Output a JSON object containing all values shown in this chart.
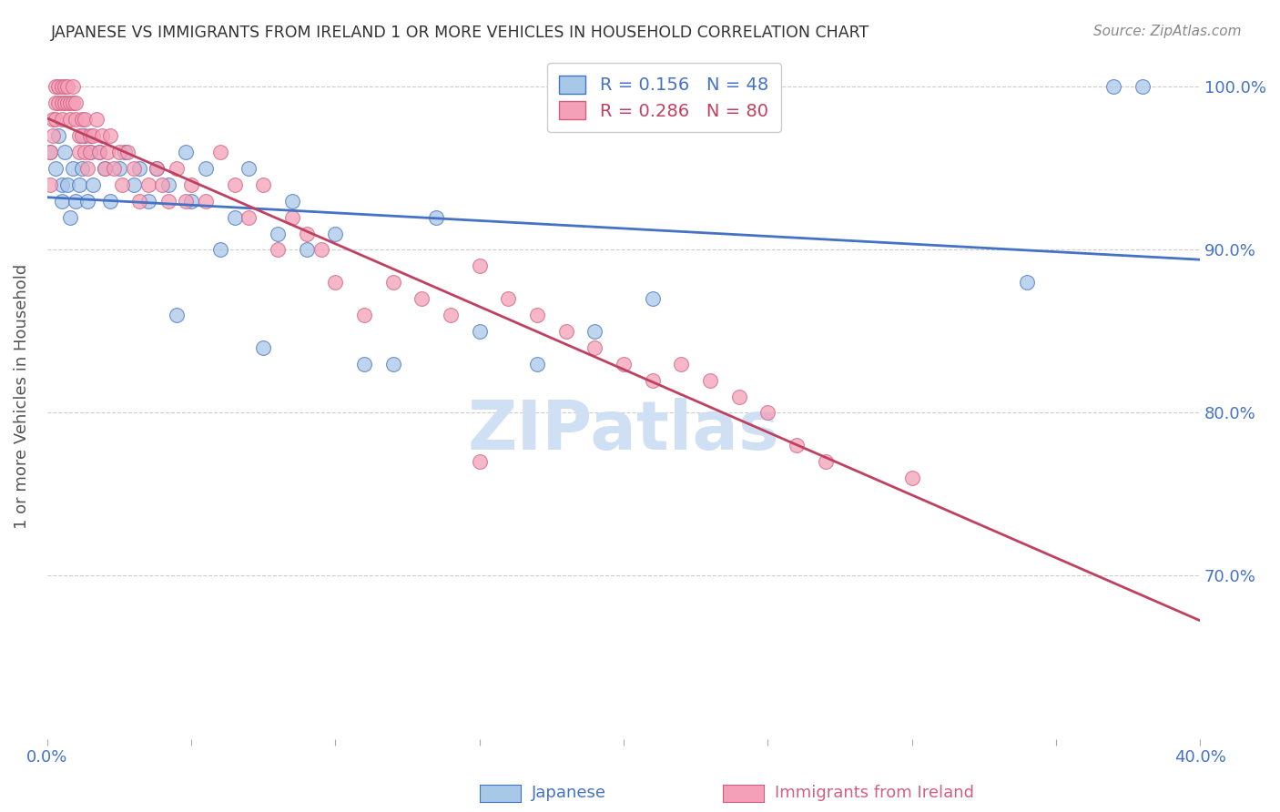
{
  "title": "JAPANESE VS IMMIGRANTS FROM IRELAND 1 OR MORE VEHICLES IN HOUSEHOLD CORRELATION CHART",
  "source": "Source: ZipAtlas.com",
  "ylabel": "1 or more Vehicles in Household",
  "xlabel_japanese": "Japanese",
  "xlabel_ireland": "Immigrants from Ireland",
  "x_min": 0.0,
  "x_max": 0.4,
  "y_min": 0.6,
  "y_max": 1.02,
  "x_tick_positions": [
    0.0,
    0.05,
    0.1,
    0.15,
    0.2,
    0.25,
    0.3,
    0.35,
    0.4
  ],
  "x_tick_labels": [
    "0.0%",
    "",
    "",
    "",
    "",
    "",
    "",
    "",
    "40.0%"
  ],
  "y_tick_positions": [
    0.7,
    0.8,
    0.9,
    1.0
  ],
  "y_tick_labels": [
    "70.0%",
    "80.0%",
    "90.0%",
    "100.0%"
  ],
  "R_japanese": 0.156,
  "N_japanese": 48,
  "R_ireland": 0.286,
  "N_ireland": 80,
  "color_japanese_fill": "#a8c8e8",
  "color_japanese_edge": "#4472c4",
  "color_ireland_fill": "#f4a0b8",
  "color_ireland_edge": "#d06080",
  "color_line_japanese": "#4472c4",
  "color_line_ireland": "#c04060",
  "color_axis_labels": "#4472c4",
  "color_grid": "#cccccc",
  "watermark_color": "#d0e0f4",
  "japanese_x": [
    0.001,
    0.003,
    0.004,
    0.005,
    0.005,
    0.006,
    0.007,
    0.008,
    0.009,
    0.01,
    0.011,
    0.012,
    0.013,
    0.014,
    0.015,
    0.016,
    0.018,
    0.02,
    0.022,
    0.025,
    0.027,
    0.03,
    0.032,
    0.035,
    0.038,
    0.042,
    0.045,
    0.048,
    0.05,
    0.055,
    0.06,
    0.065,
    0.07,
    0.075,
    0.08,
    0.085,
    0.09,
    0.1,
    0.11,
    0.12,
    0.135,
    0.15,
    0.17,
    0.19,
    0.21,
    0.34,
    0.37,
    0.38
  ],
  "japanese_y": [
    0.96,
    0.95,
    0.97,
    0.94,
    0.93,
    0.96,
    0.94,
    0.92,
    0.95,
    0.93,
    0.94,
    0.95,
    0.97,
    0.93,
    0.96,
    0.94,
    0.96,
    0.95,
    0.93,
    0.95,
    0.96,
    0.94,
    0.95,
    0.93,
    0.95,
    0.94,
    0.86,
    0.96,
    0.93,
    0.95,
    0.9,
    0.92,
    0.95,
    0.84,
    0.91,
    0.93,
    0.9,
    0.91,
    0.83,
    0.83,
    0.92,
    0.85,
    0.83,
    0.85,
    0.87,
    0.88,
    1.0,
    1.0
  ],
  "ireland_x": [
    0.001,
    0.001,
    0.002,
    0.002,
    0.003,
    0.003,
    0.003,
    0.004,
    0.004,
    0.005,
    0.005,
    0.005,
    0.006,
    0.006,
    0.007,
    0.007,
    0.008,
    0.008,
    0.009,
    0.009,
    0.01,
    0.01,
    0.011,
    0.011,
    0.012,
    0.012,
    0.013,
    0.013,
    0.014,
    0.015,
    0.015,
    0.016,
    0.017,
    0.018,
    0.019,
    0.02,
    0.021,
    0.022,
    0.023,
    0.025,
    0.026,
    0.028,
    0.03,
    0.032,
    0.035,
    0.038,
    0.04,
    0.042,
    0.045,
    0.048,
    0.05,
    0.055,
    0.06,
    0.065,
    0.07,
    0.075,
    0.08,
    0.085,
    0.09,
    0.095,
    0.1,
    0.11,
    0.12,
    0.13,
    0.14,
    0.15,
    0.16,
    0.17,
    0.18,
    0.19,
    0.2,
    0.21,
    0.22,
    0.23,
    0.24,
    0.25,
    0.26,
    0.27,
    0.3,
    0.15
  ],
  "ireland_y": [
    0.96,
    0.94,
    0.98,
    0.97,
    1.0,
    0.99,
    0.98,
    0.99,
    1.0,
    0.98,
    0.99,
    1.0,
    0.99,
    1.0,
    0.99,
    1.0,
    0.99,
    0.98,
    1.0,
    0.99,
    0.99,
    0.98,
    0.97,
    0.96,
    0.98,
    0.97,
    0.98,
    0.96,
    0.95,
    0.97,
    0.96,
    0.97,
    0.98,
    0.96,
    0.97,
    0.95,
    0.96,
    0.97,
    0.95,
    0.96,
    0.94,
    0.96,
    0.95,
    0.93,
    0.94,
    0.95,
    0.94,
    0.93,
    0.95,
    0.93,
    0.94,
    0.93,
    0.96,
    0.94,
    0.92,
    0.94,
    0.9,
    0.92,
    0.91,
    0.9,
    0.88,
    0.86,
    0.88,
    0.87,
    0.86,
    0.89,
    0.87,
    0.86,
    0.85,
    0.84,
    0.83,
    0.82,
    0.83,
    0.82,
    0.81,
    0.8,
    0.78,
    0.77,
    0.76,
    0.77
  ]
}
